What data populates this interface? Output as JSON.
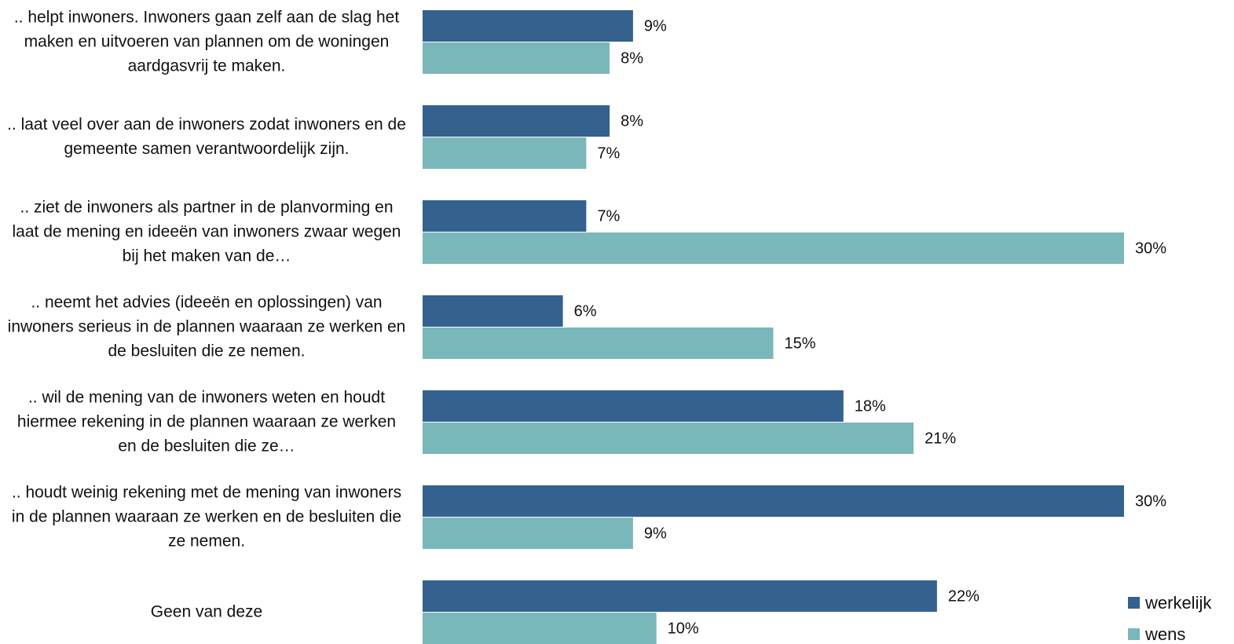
{
  "chart_data": {
    "type": "barh",
    "categories": [
      ".. helpt inwoners. Inwoners gaan zelf aan de slag het maken en uitvoeren van plannen om de woningen aardgasvrij te maken.",
      ".. laat veel over aan de inwoners zodat inwoners en de gemeente samen verantwoordelijk zijn.",
      ".. ziet de inwoners als partner in de planvorming en laat de mening en ideeën van inwoners zwaar wegen bij het maken van de…",
      ".. neemt het advies (ideeën en oplossingen) van inwoners serieus in de plannen waaraan ze werken en de besluiten die ze nemen.",
      ".. wil de mening van de inwoners weten en houdt hiermee rekening in de plannen waaraan ze werken en de besluiten die ze…",
      ".. houdt weinig rekening met de mening van inwoners in de plannen waaraan ze werken en de besluiten die ze nemen.",
      "Geen van deze"
    ],
    "series": [
      {
        "name": "werkelijk",
        "color": "#35618f",
        "values": [
          9,
          8,
          7,
          6,
          18,
          30,
          22
        ],
        "value_labels": [
          "9%",
          "8%",
          "7%",
          "6%",
          "18%",
          "30%",
          "22%"
        ]
      },
      {
        "name": "wens",
        "color": "#7ab7bb",
        "values": [
          8,
          7,
          30,
          15,
          21,
          9,
          10
        ],
        "value_labels": [
          "8%",
          "7%",
          "30%",
          "15%",
          "21%",
          "9%",
          "10%"
        ]
      }
    ],
    "legend": "bottom-right"
  }
}
